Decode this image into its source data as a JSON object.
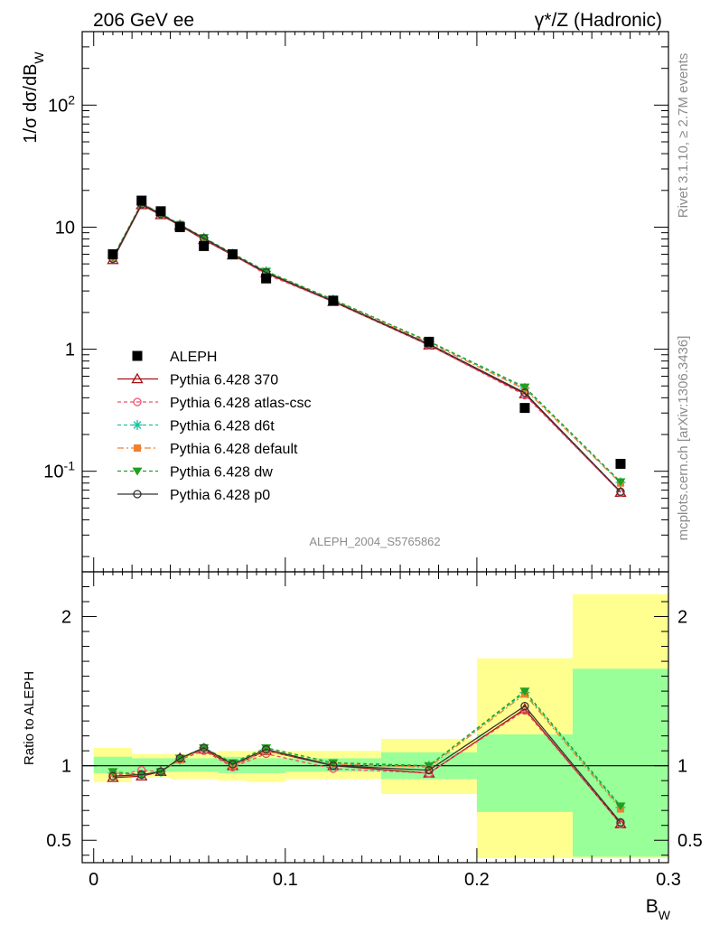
{
  "header": {
    "left": "206 GeV ee",
    "right": "γ*/Z (Hadronic)"
  },
  "side_labels": {
    "rivet": "Rivet 3.1.10, ≥ 2.7M events",
    "mcplots": "mcplots.cern.ch [arXiv:1306.3436]"
  },
  "watermark": "ALEPH_2004_S5765862",
  "chart_data": [
    {
      "type": "line",
      "role": "main",
      "ylabel": "1/σ  dσ/dB_W",
      "yscale": "log",
      "ylim": [
        0.015,
        400
      ],
      "xlim": [
        -0.006,
        0.3
      ],
      "y_ticks": [
        "10^-1",
        "1",
        "10",
        "10^2"
      ],
      "x": [
        0.01,
        0.025,
        0.035,
        0.045,
        0.0575,
        0.0725,
        0.09,
        0.125,
        0.175,
        0.225,
        0.275
      ],
      "data": {
        "name": "ALEPH",
        "color": "#000000",
        "values": [
          6.0,
          16.5,
          13.5,
          10.0,
          7.0,
          6.0,
          3.8,
          2.5,
          1.15,
          0.33,
          0.115
        ]
      },
      "series": [
        {
          "name": "Pythia 6.428 370",
          "color": "#a50f15",
          "dash": "",
          "marker": "triangle-open",
          "values": [
            5.4,
            15.2,
            12.6,
            10.3,
            7.9,
            5.9,
            4.2,
            2.45,
            1.08,
            0.43,
            0.067
          ]
        },
        {
          "name": "Pythia 6.428 atlas-csc",
          "color": "#f0506e",
          "dash": "4,3",
          "marker": "circle-open",
          "values": [
            5.55,
            15.8,
            12.8,
            10.4,
            8.0,
            5.95,
            4.1,
            2.45,
            1.08,
            0.42,
            0.067
          ]
        },
        {
          "name": "Pythia 6.428 d6t",
          "color": "#20c0a0",
          "dash": "4,3",
          "marker": "star",
          "values": [
            5.65,
            15.5,
            12.9,
            10.5,
            8.2,
            6.05,
            4.35,
            2.55,
            1.15,
            0.48,
            0.081
          ]
        },
        {
          "name": "Pythia 6.428 default",
          "color": "#f08030",
          "dash": "7,3,2,3",
          "marker": "square",
          "values": [
            5.6,
            15.4,
            12.9,
            10.5,
            8.15,
            6.0,
            4.3,
            2.52,
            1.13,
            0.47,
            0.08
          ]
        },
        {
          "name": "Pythia 6.428 dw",
          "color": "#20a020",
          "dash": "4,3",
          "marker": "triangle-down",
          "values": [
            5.7,
            15.6,
            13.0,
            10.5,
            8.2,
            6.1,
            4.35,
            2.55,
            1.16,
            0.49,
            0.082
          ]
        },
        {
          "name": "Pythia 6.428 p0",
          "color": "#333333",
          "dash": "",
          "marker": "circle-open",
          "values": [
            5.5,
            15.4,
            12.8,
            10.4,
            8.1,
            6.0,
            4.25,
            2.48,
            1.1,
            0.44,
            0.068
          ]
        }
      ]
    },
    {
      "type": "line",
      "role": "ratio",
      "ylabel": "Ratio to ALEPH",
      "xlabel": "B_W",
      "ylim": [
        0.35,
        2.3
      ],
      "y_ticks": [
        "0.5",
        "1",
        "2"
      ],
      "x_ticks": [
        "0",
        "0.1",
        "0.2",
        "0.3"
      ],
      "bin_edges": [
        0.0,
        0.02,
        0.03,
        0.04,
        0.05,
        0.065,
        0.08,
        0.1,
        0.15,
        0.2,
        0.25,
        0.3
      ],
      "band_inner": [
        [
          0.95,
          1.06
        ],
        [
          0.96,
          1.05
        ],
        [
          0.96,
          1.05
        ],
        [
          0.96,
          1.05
        ],
        [
          0.96,
          1.05
        ],
        [
          0.95,
          1.06
        ],
        [
          0.95,
          1.05
        ],
        [
          0.96,
          1.05
        ],
        [
          0.91,
          1.09
        ],
        [
          0.69,
          1.21
        ],
        [
          0.39,
          1.65
        ]
      ],
      "band_outer": [
        [
          0.89,
          1.12
        ],
        [
          0.92,
          1.08
        ],
        [
          0.92,
          1.08
        ],
        [
          0.91,
          1.08
        ],
        [
          0.91,
          1.09
        ],
        [
          0.9,
          1.1
        ],
        [
          0.89,
          1.1
        ],
        [
          0.91,
          1.1
        ],
        [
          0.81,
          1.18
        ],
        [
          0.38,
          1.72
        ],
        [
          0.38,
          2.15
        ]
      ],
      "x": [
        0.01,
        0.025,
        0.035,
        0.045,
        0.0575,
        0.0725,
        0.09,
        0.125,
        0.175,
        0.225,
        0.275
      ],
      "series": [
        {
          "name": "Pythia 6.428 370",
          "color": "#a50f15",
          "dash": "",
          "marker": "triangle-open",
          "values": [
            0.92,
            0.93,
            0.96,
            1.05,
            1.11,
            1.0,
            1.1,
            1.0,
            0.95,
            1.38,
            0.61
          ]
        },
        {
          "name": "Pythia 6.428 atlas-csc",
          "color": "#f0506e",
          "dash": "4,3",
          "marker": "circle-open",
          "values": [
            0.93,
            0.97,
            0.96,
            1.04,
            1.1,
            0.99,
            1.08,
            0.98,
            0.95,
            1.37,
            0.61
          ]
        },
        {
          "name": "Pythia 6.428 d6t",
          "color": "#20c0a0",
          "dash": "4,3",
          "marker": "star",
          "values": [
            0.95,
            0.94,
            0.96,
            1.04,
            1.12,
            1.01,
            1.11,
            1.01,
            1.0,
            1.49,
            0.72
          ]
        },
        {
          "name": "Pythia 6.428 default",
          "color": "#f08030",
          "dash": "7,3,2,3",
          "marker": "square",
          "values": [
            0.95,
            0.94,
            0.96,
            1.04,
            1.12,
            1.0,
            1.1,
            1.01,
            0.99,
            1.48,
            0.71
          ]
        },
        {
          "name": "Pythia 6.428 dw",
          "color": "#20a020",
          "dash": "4,3",
          "marker": "triangle-down",
          "values": [
            0.96,
            0.94,
            0.96,
            1.05,
            1.12,
            1.02,
            1.12,
            1.02,
            1.0,
            1.5,
            0.73
          ]
        },
        {
          "name": "Pythia 6.428 p0",
          "color": "#333333",
          "dash": "",
          "marker": "circle-open",
          "values": [
            0.93,
            0.94,
            0.96,
            1.05,
            1.12,
            1.01,
            1.11,
            1.0,
            0.97,
            1.4,
            0.62
          ]
        }
      ]
    }
  ]
}
